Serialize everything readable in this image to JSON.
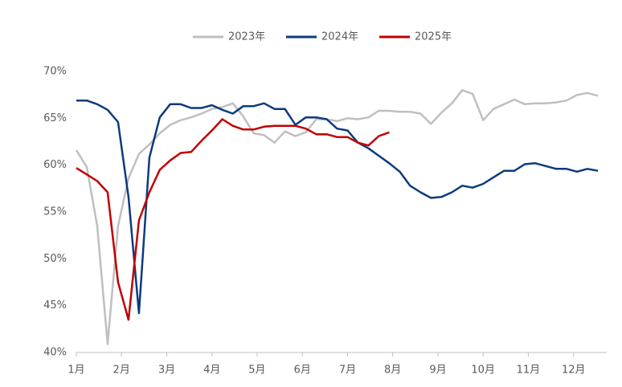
{
  "chart_data": {
    "type": "line",
    "x": [
      1,
      2,
      3,
      4,
      5,
      6,
      7,
      8,
      9,
      10,
      11,
      12,
      13,
      14,
      15,
      16,
      17,
      18,
      19,
      20,
      21,
      22,
      23,
      24,
      25,
      26,
      27,
      28,
      29,
      30,
      31,
      32,
      33,
      34,
      35,
      36,
      37,
      38,
      39,
      40,
      41,
      42,
      43,
      44,
      45,
      46,
      47,
      48,
      49,
      50,
      51
    ],
    "xlim": [
      1,
      51.85
    ],
    "xticks": [
      {
        "value": 1,
        "label": "1月"
      },
      {
        "value": 5.33,
        "label": "2月"
      },
      {
        "value": 9.67,
        "label": "3月"
      },
      {
        "value": 14,
        "label": "4月"
      },
      {
        "value": 18.33,
        "label": "5月"
      },
      {
        "value": 22.67,
        "label": "6月"
      },
      {
        "value": 27,
        "label": "7月"
      },
      {
        "value": 31.33,
        "label": "8月"
      },
      {
        "value": 35.67,
        "label": "9月"
      },
      {
        "value": 40,
        "label": "10月"
      },
      {
        "value": 44.33,
        "label": "11月"
      },
      {
        "value": 48.67,
        "label": "12月"
      }
    ],
    "ylim": [
      40,
      70
    ],
    "yticks": [
      {
        "value": 40,
        "label": "40%"
      },
      {
        "value": 45,
        "label": "45%"
      },
      {
        "value": 50,
        "label": "50%"
      },
      {
        "value": 55,
        "label": "55%"
      },
      {
        "value": 60,
        "label": "60%"
      },
      {
        "value": 65,
        "label": "65%"
      },
      {
        "value": 70,
        "label": "70%"
      }
    ],
    "grid": false,
    "legend": "top",
    "series": [
      {
        "name": "2023年",
        "color": "#bfbfbf",
        "values": [
          61.6,
          59.8,
          53.5,
          40.9,
          53.5,
          58.6,
          61.2,
          62.2,
          63.4,
          64.3,
          64.8,
          65.1,
          65.5,
          66.0,
          66.2,
          66.6,
          65.2,
          63.4,
          63.2,
          62.4,
          63.6,
          63.1,
          63.5,
          64.9,
          64.9,
          64.7,
          65.0,
          64.9,
          65.1,
          65.8,
          65.8,
          65.7,
          65.7,
          65.5,
          64.4,
          65.6,
          66.6,
          68.0,
          67.6,
          64.8,
          66.0,
          66.5,
          67.0,
          66.5,
          66.6,
          66.6,
          66.7,
          66.9,
          67.5,
          67.7,
          67.4
        ]
      },
      {
        "name": "2024年",
        "color": "#0d3a7e",
        "values": [
          66.9,
          66.9,
          66.5,
          65.9,
          64.6,
          56.6,
          44.2,
          60.8,
          65.1,
          66.5,
          66.5,
          66.1,
          66.1,
          66.4,
          65.9,
          65.5,
          66.3,
          66.3,
          66.6,
          66.0,
          66.0,
          64.3,
          65.1,
          65.1,
          64.9,
          63.9,
          63.7,
          62.4,
          61.8,
          61.0,
          60.2,
          59.3,
          57.8,
          57.1,
          56.5,
          56.6,
          57.1,
          57.8,
          57.6,
          58.0,
          58.7,
          59.4,
          59.4,
          60.1,
          60.2,
          59.9,
          59.6,
          59.6,
          59.3,
          59.6,
          59.4
        ]
      },
      {
        "name": "2025年",
        "color": "#c00000",
        "values": [
          59.7,
          59.0,
          58.3,
          57.1,
          47.5,
          43.5,
          54.1,
          57.1,
          59.5,
          60.5,
          61.3,
          61.4,
          62.6,
          63.7,
          64.9,
          64.2,
          63.8,
          63.8,
          64.1,
          64.2,
          64.2,
          64.2,
          63.9,
          63.3,
          63.3,
          63.0,
          63.0,
          62.4,
          62.1,
          63.1,
          63.5,
          null,
          null,
          null,
          null,
          null,
          null,
          null,
          null,
          null,
          null,
          null,
          null,
          null,
          null,
          null,
          null,
          null,
          null,
          null,
          null
        ]
      }
    ]
  }
}
